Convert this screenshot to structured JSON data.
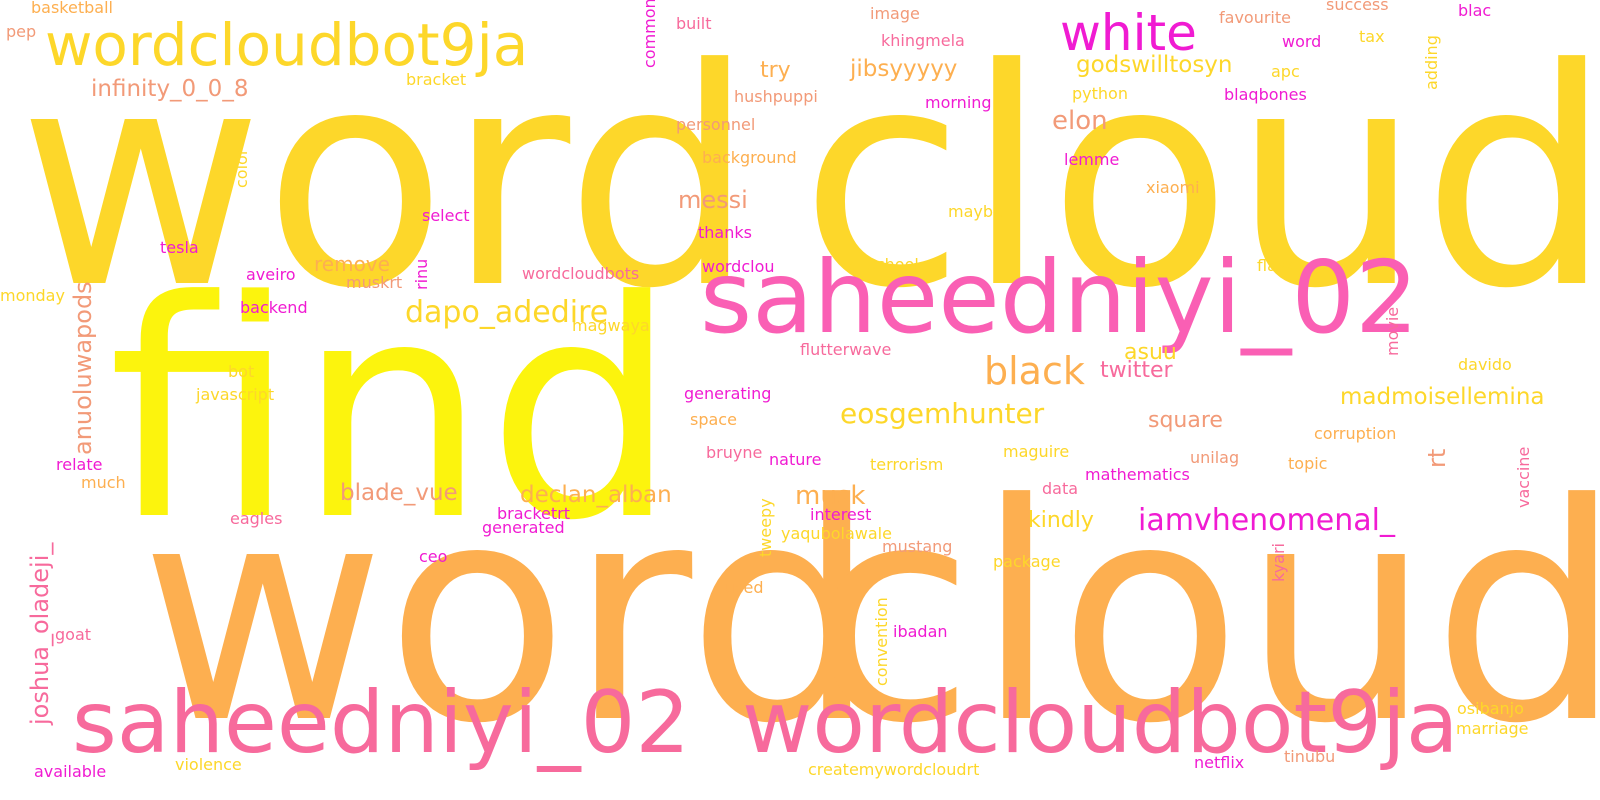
{
  "palette": {
    "gold": "#fdd72a",
    "yellow": "#fcf40d",
    "orange": "#fdaf50",
    "pink": "#fa5fb4",
    "rose": "#f76a9c",
    "magenta": "#f01bd2",
    "salmon": "#f29a78"
  },
  "words": [
    {
      "text": "word",
      "c": "gold"
    },
    {
      "text": "cloud",
      "c": "gold"
    },
    {
      "text": "find",
      "c": "yellow"
    },
    {
      "text": "word",
      "c": "orange"
    },
    {
      "text": "cloud",
      "c": "orange"
    },
    {
      "text": "saheedniyi_02",
      "c": "pink"
    },
    {
      "text": "saheedniyi_02",
      "c": "rose"
    },
    {
      "text": "wordcloudbot9ja",
      "c": "rose"
    },
    {
      "text": "wordcloudbot9ja",
      "c": "gold"
    },
    {
      "text": "white",
      "c": "magenta"
    },
    {
      "text": "black",
      "c": "orange"
    },
    {
      "text": "dapo_adedire",
      "c": "gold"
    },
    {
      "text": "iamvhenomenal_",
      "c": "magenta"
    },
    {
      "text": "eosgemhunter",
      "c": "gold"
    },
    {
      "text": "anuoluwapods",
      "c": "salmon"
    },
    {
      "text": "joshua_oladeji_",
      "c": "rose"
    },
    {
      "text": "infinity_0_0_8",
      "c": "salmon"
    },
    {
      "text": "godswilltosyn",
      "c": "gold"
    },
    {
      "text": "jibsyyyyy",
      "c": "orange"
    },
    {
      "text": "madmoisellemina",
      "c": "gold"
    },
    {
      "text": "declan_alban",
      "c": "orange"
    },
    {
      "text": "blade_vue",
      "c": "salmon"
    },
    {
      "text": "elon",
      "c": "salmon"
    },
    {
      "text": "messi",
      "c": "salmon"
    },
    {
      "text": "musk",
      "c": "orange"
    },
    {
      "text": "twitter",
      "c": "rose"
    },
    {
      "text": "square",
      "c": "salmon"
    },
    {
      "text": "kindly",
      "c": "gold"
    },
    {
      "text": "remove",
      "c": "orange"
    },
    {
      "text": "asuu",
      "c": "gold"
    },
    {
      "text": "try",
      "c": "orange"
    },
    {
      "text": "rt",
      "c": "salmon"
    },
    {
      "text": "basketball",
      "c": "orange"
    },
    {
      "text": "pep",
      "c": "salmon"
    },
    {
      "text": "bracket",
      "c": "gold"
    },
    {
      "text": "common",
      "c": "magenta"
    },
    {
      "text": "built",
      "c": "rose"
    },
    {
      "text": "image",
      "c": "salmon"
    },
    {
      "text": "khingmela",
      "c": "rose"
    },
    {
      "text": "favourite",
      "c": "salmon"
    },
    {
      "text": "success",
      "c": "salmon"
    },
    {
      "text": "blac",
      "c": "magenta"
    },
    {
      "text": "word",
      "c": "magenta"
    },
    {
      "text": "tax",
      "c": "gold"
    },
    {
      "text": "adding",
      "c": "gold"
    },
    {
      "text": "apc",
      "c": "gold"
    },
    {
      "text": "python",
      "c": "gold"
    },
    {
      "text": "blaqbones",
      "c": "magenta"
    },
    {
      "text": "hushpuppi",
      "c": "salmon"
    },
    {
      "text": "morning",
      "c": "magenta"
    },
    {
      "text": "personnel",
      "c": "salmon"
    },
    {
      "text": "background",
      "c": "orange"
    },
    {
      "text": "lemme",
      "c": "magenta"
    },
    {
      "text": "xiaomi",
      "c": "orange"
    },
    {
      "text": "color",
      "c": "gold"
    },
    {
      "text": "maybe",
      "c": "gold"
    },
    {
      "text": "select",
      "c": "magenta"
    },
    {
      "text": "thanks",
      "c": "magenta"
    },
    {
      "text": "tesla",
      "c": "magenta"
    },
    {
      "text": "aveiro",
      "c": "magenta"
    },
    {
      "text": "rinu",
      "c": "magenta"
    },
    {
      "text": "muskrt",
      "c": "salmon"
    },
    {
      "text": "wordcloudbots",
      "c": "rose"
    },
    {
      "text": "wordclou",
      "c": "magenta"
    },
    {
      "text": "altschool",
      "c": "gold"
    },
    {
      "text": "flask",
      "c": "gold"
    },
    {
      "text": "monday",
      "c": "gold"
    },
    {
      "text": "backend",
      "c": "magenta"
    },
    {
      "text": "magwaya",
      "c": "gold"
    },
    {
      "text": "movie",
      "c": "rose"
    },
    {
      "text": "flutterwave",
      "c": "rose"
    },
    {
      "text": "davido",
      "c": "gold"
    },
    {
      "text": "bot",
      "c": "gold"
    },
    {
      "text": "javascript",
      "c": "gold"
    },
    {
      "text": "generating",
      "c": "magenta"
    },
    {
      "text": "space",
      "c": "orange"
    },
    {
      "text": "corruption",
      "c": "orange"
    },
    {
      "text": "vaccine",
      "c": "rose"
    },
    {
      "text": "bruyne",
      "c": "rose"
    },
    {
      "text": "nature",
      "c": "magenta"
    },
    {
      "text": "terrorism",
      "c": "gold"
    },
    {
      "text": "maguire",
      "c": "gold"
    },
    {
      "text": "unilag",
      "c": "salmon"
    },
    {
      "text": "topic",
      "c": "orange"
    },
    {
      "text": "relate",
      "c": "magenta"
    },
    {
      "text": "much",
      "c": "orange"
    },
    {
      "text": "mathematics",
      "c": "magenta"
    },
    {
      "text": "data",
      "c": "rose"
    },
    {
      "text": "bracketrt",
      "c": "magenta"
    },
    {
      "text": "interest",
      "c": "magenta"
    },
    {
      "text": "eagles",
      "c": "rose"
    },
    {
      "text": "generated",
      "c": "magenta"
    },
    {
      "text": "tweepy",
      "c": "gold"
    },
    {
      "text": "yaqubolawale",
      "c": "gold"
    },
    {
      "text": "ceo",
      "c": "magenta"
    },
    {
      "text": "mustang",
      "c": "salmon"
    },
    {
      "text": "package",
      "c": "gold"
    },
    {
      "text": "kyari",
      "c": "rose"
    },
    {
      "text": "used",
      "c": "orange"
    },
    {
      "text": "convention",
      "c": "gold"
    },
    {
      "text": "goat",
      "c": "rose"
    },
    {
      "text": "ibadan",
      "c": "magenta"
    },
    {
      "text": "osibanjo",
      "c": "gold"
    },
    {
      "text": "marriage",
      "c": "gold"
    },
    {
      "text": "available",
      "c": "magenta"
    },
    {
      "text": "violence",
      "c": "gold"
    },
    {
      "text": "createmywordcloudrt",
      "c": "gold"
    },
    {
      "text": "netflix",
      "c": "magenta"
    },
    {
      "text": "tinubu",
      "c": "salmon"
    }
  ]
}
